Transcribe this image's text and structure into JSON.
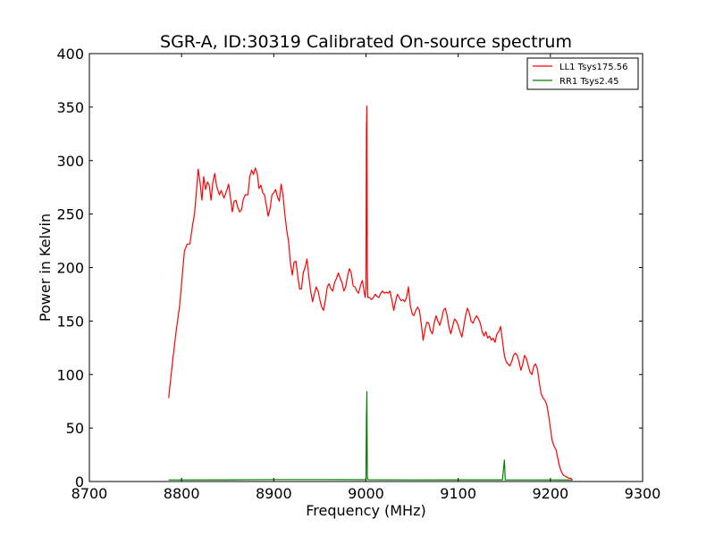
{
  "chart_data": {
    "type": "line",
    "title": "SGR-A, ID:30319 Calibrated On-source spectrum",
    "xlabel": "Frequency (MHz)",
    "ylabel": "Power in Kelvin",
    "xlim": [
      8700,
      9300
    ],
    "ylim": [
      0,
      400
    ],
    "xticks": [
      8700,
      8800,
      8900,
      9000,
      9100,
      9200,
      9300
    ],
    "yticks": [
      0,
      50,
      100,
      150,
      200,
      250,
      300,
      350,
      400
    ],
    "grid": false,
    "legend_position": "top-right",
    "series": [
      {
        "name": "LL1 Tsys175.56",
        "color": "#ff0000",
        "points": [
          [
            8786,
            78
          ],
          [
            8790,
            110
          ],
          [
            8794,
            140
          ],
          [
            8798,
            165
          ],
          [
            8801,
            195
          ],
          [
            8803,
            215
          ],
          [
            8806,
            222
          ],
          [
            8809,
            222
          ],
          [
            8812,
            240
          ],
          [
            8814,
            250
          ],
          [
            8816,
            270
          ],
          [
            8818,
            292
          ],
          [
            8820,
            280
          ],
          [
            8822,
            263
          ],
          [
            8824,
            285
          ],
          [
            8826,
            273
          ],
          [
            8828,
            280
          ],
          [
            8830,
            277
          ],
          [
            8832,
            263
          ],
          [
            8834,
            280
          ],
          [
            8836,
            288
          ],
          [
            8838,
            276
          ],
          [
            8841,
            268
          ],
          [
            8843,
            272
          ],
          [
            8846,
            265
          ],
          [
            8849,
            272
          ],
          [
            8851,
            278
          ],
          [
            8853,
            266
          ],
          [
            8855,
            252
          ],
          [
            8857,
            262
          ],
          [
            8859,
            263
          ],
          [
            8861,
            256
          ],
          [
            8863,
            252
          ],
          [
            8865,
            254
          ],
          [
            8867,
            264
          ],
          [
            8869,
            268
          ],
          [
            8872,
            268
          ],
          [
            8874,
            285
          ],
          [
            8876,
            291
          ],
          [
            8878,
            287
          ],
          [
            8880,
            293
          ],
          [
            8882,
            288
          ],
          [
            8884,
            274
          ],
          [
            8886,
            277
          ],
          [
            8888,
            270
          ],
          [
            8890,
            268
          ],
          [
            8892,
            258
          ],
          [
            8894,
            248
          ],
          [
            8896,
            255
          ],
          [
            8898,
            268
          ],
          [
            8900,
            270
          ],
          [
            8902,
            273
          ],
          [
            8904,
            266
          ],
          [
            8906,
            262
          ],
          [
            8908,
            278
          ],
          [
            8910,
            268
          ],
          [
            8912,
            250
          ],
          [
            8914,
            235
          ],
          [
            8916,
            225
          ],
          [
            8918,
            205
          ],
          [
            8920,
            193
          ],
          [
            8922,
            205
          ],
          [
            8924,
            206
          ],
          [
            8926,
            192
          ],
          [
            8928,
            180
          ],
          [
            8930,
            180
          ],
          [
            8932,
            195
          ],
          [
            8934,
            200
          ],
          [
            8936,
            208
          ],
          [
            8938,
            192
          ],
          [
            8940,
            178
          ],
          [
            8942,
            168
          ],
          [
            8944,
            175
          ],
          [
            8946,
            182
          ],
          [
            8948,
            178
          ],
          [
            8950,
            170
          ],
          [
            8952,
            163
          ],
          [
            8954,
            160
          ],
          [
            8956,
            170
          ],
          [
            8958,
            182
          ],
          [
            8960,
            185
          ],
          [
            8962,
            180
          ],
          [
            8964,
            178
          ],
          [
            8966,
            186
          ],
          [
            8968,
            190
          ],
          [
            8970,
            195
          ],
          [
            8972,
            190
          ],
          [
            8974,
            186
          ],
          [
            8976,
            178
          ],
          [
            8978,
            182
          ],
          [
            8980,
            192
          ],
          [
            8982,
            199
          ],
          [
            8984,
            195
          ],
          [
            8986,
            183
          ],
          [
            8988,
            182
          ],
          [
            8990,
            178
          ],
          [
            8992,
            176
          ],
          [
            8994,
            183
          ],
          [
            8996,
            188
          ],
          [
            8998,
            178
          ],
          [
            8999,
            172
          ],
          [
            9000,
            180
          ],
          [
            9000.5,
            330
          ],
          [
            9001,
            351
          ],
          [
            9001.5,
            200
          ],
          [
            9002,
            172
          ],
          [
            9004,
            172
          ],
          [
            9006,
            170
          ],
          [
            9008,
            172
          ],
          [
            9010,
            175
          ],
          [
            9012,
            173
          ],
          [
            9014,
            172
          ],
          [
            9016,
            176
          ],
          [
            9018,
            178
          ],
          [
            9020,
            176
          ],
          [
            9022,
            177
          ],
          [
            9024,
            176
          ],
          [
            9026,
            178
          ],
          [
            9028,
            170
          ],
          [
            9030,
            160
          ],
          [
            9032,
            168
          ],
          [
            9034,
            175
          ],
          [
            9036,
            172
          ],
          [
            9038,
            169
          ],
          [
            9040,
            170
          ],
          [
            9042,
            168
          ],
          [
            9044,
            172
          ],
          [
            9046,
            182
          ],
          [
            9048,
            165
          ],
          [
            9050,
            157
          ],
          [
            9052,
            155
          ],
          [
            9054,
            160
          ],
          [
            9056,
            163
          ],
          [
            9058,
            160
          ],
          [
            9060,
            147
          ],
          [
            9062,
            132
          ],
          [
            9064,
            142
          ],
          [
            9066,
            149
          ],
          [
            9068,
            148
          ],
          [
            9070,
            141
          ],
          [
            9072,
            138
          ],
          [
            9074,
            148
          ],
          [
            9076,
            155
          ],
          [
            9078,
            150
          ],
          [
            9080,
            146
          ],
          [
            9082,
            152
          ],
          [
            9084,
            160
          ],
          [
            9086,
            162
          ],
          [
            9088,
            155
          ],
          [
            9090,
            144
          ],
          [
            9092,
            138
          ],
          [
            9094,
            145
          ],
          [
            9096,
            152
          ],
          [
            9098,
            150
          ],
          [
            9100,
            146
          ],
          [
            9102,
            140
          ],
          [
            9104,
            135
          ],
          [
            9106,
            145
          ],
          [
            9108,
            155
          ],
          [
            9110,
            162
          ],
          [
            9112,
            158
          ],
          [
            9114,
            150
          ],
          [
            9116,
            148
          ],
          [
            9118,
            152
          ],
          [
            9120,
            155
          ],
          [
            9122,
            152
          ],
          [
            9124,
            148
          ],
          [
            9126,
            140
          ],
          [
            9128,
            136
          ],
          [
            9130,
            140
          ],
          [
            9132,
            134
          ],
          [
            9134,
            136
          ],
          [
            9136,
            132
          ],
          [
            9138,
            134
          ],
          [
            9140,
            130
          ],
          [
            9142,
            138
          ],
          [
            9144,
            140
          ],
          [
            9146,
            145
          ],
          [
            9148,
            132
          ],
          [
            9150,
            118
          ],
          [
            9152,
            112
          ],
          [
            9154,
            110
          ],
          [
            9156,
            108
          ],
          [
            9158,
            112
          ],
          [
            9160,
            118
          ],
          [
            9162,
            120
          ],
          [
            9164,
            118
          ],
          [
            9166,
            112
          ],
          [
            9168,
            104
          ],
          [
            9170,
            110
          ],
          [
            9172,
            118
          ],
          [
            9174,
            115
          ],
          [
            9176,
            108
          ],
          [
            9178,
            102
          ],
          [
            9180,
            100
          ],
          [
            9182,
            108
          ],
          [
            9184,
            110
          ],
          [
            9186,
            105
          ],
          [
            9188,
            92
          ],
          [
            9190,
            82
          ],
          [
            9192,
            78
          ],
          [
            9194,
            76
          ],
          [
            9196,
            72
          ],
          [
            9198,
            62
          ],
          [
            9200,
            50
          ],
          [
            9202,
            38
          ],
          [
            9204,
            33
          ],
          [
            9206,
            30
          ],
          [
            9208,
            22
          ],
          [
            9210,
            14
          ],
          [
            9212,
            9
          ],
          [
            9214,
            6
          ],
          [
            9216,
            5
          ],
          [
            9218,
            4
          ],
          [
            9220,
            3
          ],
          [
            9222,
            3
          ],
          [
            9224,
            2
          ]
        ]
      },
      {
        "name": "RR1 Tsys2.45",
        "color": "#008000",
        "points": [
          [
            8786,
            1.5
          ],
          [
            8800,
            1.5
          ],
          [
            8850,
            1.6
          ],
          [
            8900,
            1.8
          ],
          [
            8950,
            1.8
          ],
          [
            8999,
            1.7
          ],
          [
            9000,
            2
          ],
          [
            9000.5,
            60
          ],
          [
            9001,
            84
          ],
          [
            9001.5,
            5
          ],
          [
            9002,
            1.7
          ],
          [
            9050,
            1.5
          ],
          [
            9100,
            1.6
          ],
          [
            9148,
            1.6
          ],
          [
            9149,
            10
          ],
          [
            9150,
            20
          ],
          [
            9150.5,
            12
          ],
          [
            9151,
            1.6
          ],
          [
            9200,
            1.5
          ],
          [
            9224,
            1.4
          ]
        ]
      }
    ]
  }
}
